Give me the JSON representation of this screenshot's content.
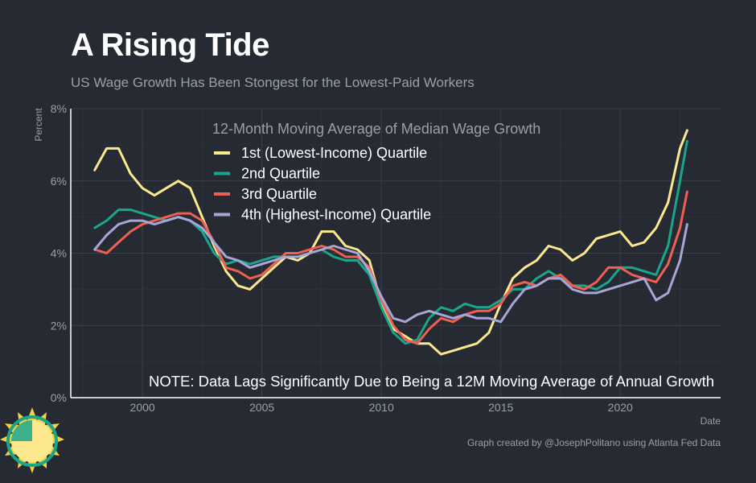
{
  "header": {
    "title": "A Rising Tide",
    "subtitle": "US Wage Growth Has Been Stongest for the Lowest-Paid Workers"
  },
  "footer": {
    "credit": "Graph created by @JosephPolitano using Atlanta Fed Data"
  },
  "colors": {
    "background": "#262a33",
    "grid": "#3b3f49",
    "axis": "#ffffff",
    "tick_label": "#9aa0a8",
    "q1": "#fbe88f",
    "q2": "#1aa68c",
    "q3": "#ef5f52",
    "q4": "#a7a6d6"
  },
  "chart_data": {
    "type": "line",
    "title": "12-Month Moving Average of Median Wage Growth",
    "xlabel": "Date",
    "ylabel": "Percent",
    "xlim": [
      1997.0,
      2024.2
    ],
    "ylim": [
      0,
      8
    ],
    "x_ticks": [
      2000,
      2005,
      2010,
      2015,
      2020
    ],
    "x_tick_labels": [
      "2000",
      "2005",
      "2010",
      "2015",
      "2020"
    ],
    "y_ticks": [
      0,
      2,
      4,
      6,
      8
    ],
    "y_tick_labels": [
      "0%",
      "2%",
      "4%",
      "6%",
      "8%"
    ],
    "grid": true,
    "legend_position": "top-center",
    "annotation": "NOTE: Data Lags Significantly Due to Being a 12M Moving Average of Annual Growth",
    "x": [
      1998.0,
      1998.5,
      1999.0,
      1999.5,
      2000.0,
      2000.5,
      2001.0,
      2001.5,
      2002.0,
      2002.5,
      2003.0,
      2003.5,
      2004.0,
      2004.5,
      2005.0,
      2005.5,
      2006.0,
      2006.5,
      2007.0,
      2007.5,
      2008.0,
      2008.5,
      2009.0,
      2009.5,
      2010.0,
      2010.5,
      2011.0,
      2011.5,
      2012.0,
      2012.5,
      2013.0,
      2013.5,
      2014.0,
      2014.5,
      2015.0,
      2015.5,
      2016.0,
      2016.5,
      2017.0,
      2017.5,
      2018.0,
      2018.5,
      2019.0,
      2019.5,
      2020.0,
      2020.5,
      2021.0,
      2021.5,
      2022.0,
      2022.5,
      2022.8
    ],
    "series": [
      {
        "name": "1st (Lowest-Income) Quartile",
        "color": "#fbe88f",
        "values": [
          6.3,
          6.9,
          6.9,
          6.2,
          5.8,
          5.6,
          5.8,
          6.0,
          5.8,
          5.0,
          4.2,
          3.5,
          3.1,
          3.0,
          3.3,
          3.6,
          3.9,
          3.8,
          4.0,
          4.6,
          4.6,
          4.2,
          4.1,
          3.8,
          2.6,
          1.9,
          1.7,
          1.5,
          1.5,
          1.2,
          1.3,
          1.4,
          1.5,
          1.8,
          2.6,
          3.3,
          3.6,
          3.8,
          4.2,
          4.1,
          3.8,
          4.0,
          4.4,
          4.5,
          4.6,
          4.2,
          4.3,
          4.7,
          5.4,
          6.9,
          7.4
        ]
      },
      {
        "name": "2nd Quartile",
        "color": "#1aa68c",
        "values": [
          4.7,
          4.9,
          5.2,
          5.2,
          5.1,
          5.0,
          4.9,
          5.0,
          4.9,
          4.6,
          4.0,
          3.7,
          3.8,
          3.7,
          3.8,
          3.9,
          3.9,
          3.9,
          4.0,
          4.1,
          3.9,
          3.8,
          3.8,
          3.4,
          2.5,
          1.8,
          1.5,
          1.6,
          2.2,
          2.5,
          2.4,
          2.6,
          2.5,
          2.5,
          2.7,
          3.0,
          3.0,
          3.3,
          3.5,
          3.3,
          3.1,
          3.1,
          3.0,
          3.2,
          3.6,
          3.6,
          3.5,
          3.4,
          4.2,
          6.0,
          7.1
        ]
      },
      {
        "name": "3rd Quartile",
        "color": "#ef5f52",
        "values": [
          4.1,
          4.0,
          4.3,
          4.6,
          4.8,
          4.9,
          5.0,
          5.1,
          5.1,
          4.9,
          4.3,
          3.6,
          3.5,
          3.3,
          3.4,
          3.7,
          4.0,
          4.0,
          4.1,
          4.2,
          4.1,
          3.9,
          3.9,
          3.6,
          2.7,
          2.0,
          1.6,
          1.5,
          1.9,
          2.2,
          2.1,
          2.3,
          2.4,
          2.4,
          2.6,
          3.1,
          3.2,
          3.1,
          3.3,
          3.4,
          3.1,
          3.0,
          3.2,
          3.6,
          3.6,
          3.4,
          3.3,
          3.2,
          3.7,
          4.7,
          5.7
        ]
      },
      {
        "name": "4th (Highest-Income) Quartile",
        "color": "#a7a6d6",
        "values": [
          4.1,
          4.5,
          4.8,
          4.9,
          4.9,
          4.8,
          4.9,
          5.0,
          4.9,
          4.7,
          4.3,
          3.9,
          3.8,
          3.6,
          3.7,
          3.8,
          3.9,
          3.9,
          4.0,
          4.1,
          4.2,
          4.1,
          4.0,
          3.5,
          2.8,
          2.2,
          2.1,
          2.3,
          2.4,
          2.3,
          2.2,
          2.3,
          2.2,
          2.2,
          2.1,
          2.6,
          3.0,
          3.1,
          3.3,
          3.3,
          3.0,
          2.9,
          2.9,
          3.0,
          3.1,
          3.2,
          3.3,
          2.7,
          2.9,
          3.8,
          4.8
        ]
      }
    ]
  },
  "logo": {
    "icon": "sun-icon"
  }
}
